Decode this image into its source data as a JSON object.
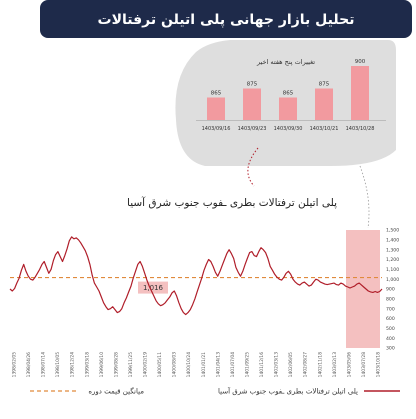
{
  "header": {
    "title": "تحلیل بازار جهانی پلی اتیلن ترفتالات",
    "bg_color": "#1e2a4a",
    "text_color": "#ffffff"
  },
  "inset": {
    "chart_data": {
      "type": "bar",
      "title": "تغییرات پنج هفته اخیر",
      "categories": [
        "1403/09/16",
        "1403/09/23",
        "1403/09/30",
        "1403/10/21",
        "1403/10/28"
      ],
      "values": [
        865,
        875,
        865,
        875,
        900
      ],
      "value_labels": [
        "865",
        "875",
        "865",
        "875",
        "900"
      ],
      "bar_color": "#f29a9f",
      "bg_color": "#dedede"
    }
  },
  "main": {
    "chart_data": {
      "type": "line",
      "title": "پلی اتیلن ترفتالات بطری ـفوب جنوب شرق آسیا",
      "y_ticks": [
        "300",
        "400",
        "500",
        "600",
        "700",
        "800",
        "900",
        "1,000",
        "1,100",
        "1,200",
        "1,300",
        "1,400",
        "1,500"
      ],
      "ylim": [
        300,
        1500
      ],
      "x_tick_labels": [
        "1398/02/05",
        "1398/04/26",
        "1398/07/14",
        "1398/10/05",
        "1398/12/24",
        "1399/03/18",
        "1399/06/10",
        "1399/08/28",
        "1399/11/25",
        "1400/02/19",
        "1400/05/11",
        "1400/08/03",
        "1400/10/24",
        "1401/01/21",
        "1401/04/13",
        "1401/07/04",
        "1401/09/25",
        "1401/12/16",
        "1402/03/13",
        "1402/06/05",
        "1402/08/27",
        "1402/11/18",
        "1403/02/13",
        "1403/05/06",
        "1403/07/28",
        "1403/10/18"
      ],
      "series": [
        {
          "name": "پلی اتیلن ترفتالات بطری ـفوب جنوب شرق آسیا",
          "color": "#b01e2a",
          "values": [
            900,
            880,
            905,
            960,
            1010,
            1090,
            1150,
            1080,
            1030,
            1000,
            990,
            1020,
            1060,
            1100,
            1150,
            1180,
            1120,
            1060,
            1100,
            1190,
            1250,
            1280,
            1230,
            1180,
            1240,
            1310,
            1390,
            1430,
            1410,
            1420,
            1400,
            1370,
            1330,
            1290,
            1230,
            1150,
            1040,
            960,
            920,
            880,
            820,
            760,
            720,
            690,
            700,
            720,
            690,
            660,
            670,
            700,
            760,
            810,
            870,
            930,
            1010,
            1080,
            1150,
            1180,
            1130,
            1060,
            990,
            930,
            880,
            830,
            780,
            750,
            730,
            740,
            760,
            790,
            820,
            860,
            880,
            830,
            760,
            700,
            660,
            640,
            660,
            690,
            740,
            800,
            870,
            940,
            1010,
            1090,
            1150,
            1200,
            1180,
            1130,
            1070,
            1030,
            1080,
            1140,
            1200,
            1260,
            1300,
            1260,
            1210,
            1120,
            1070,
            1030,
            1080,
            1150,
            1210,
            1270,
            1280,
            1240,
            1230,
            1280,
            1320,
            1300,
            1270,
            1210,
            1130,
            1090,
            1050,
            1020,
            1000,
            990,
            1020,
            1060,
            1080,
            1050,
            1000,
            970,
            950,
            940,
            960,
            970,
            950,
            930,
            940,
            970,
            1000,
            990,
            970,
            960,
            950,
            945,
            950,
            955,
            960,
            945,
            940,
            960,
            950,
            930,
            920,
            910,
            920,
            930,
            950,
            960,
            940,
            920,
            900,
            880,
            870,
            865,
            875,
            865,
            875,
            900
          ]
        },
        {
          "name": "میانگین قیمت دوره",
          "color": "#e08a3c",
          "style": "dashed",
          "values": [
            1016
          ]
        }
      ],
      "annotations": [
        {
          "text": "1,016"
        }
      ],
      "highlight_color": "#f4c0c0",
      "legend": [
        {
          "label": "پلی اتیلن ترفتالات بطری ـفوب جنوب شرق آسیا",
          "color": "#b01e2a",
          "style": "solid"
        },
        {
          "label": "میانگین قیمت دوره",
          "color": "#e08a3c",
          "style": "dashed"
        }
      ],
      "legend_position": "bottom"
    }
  }
}
